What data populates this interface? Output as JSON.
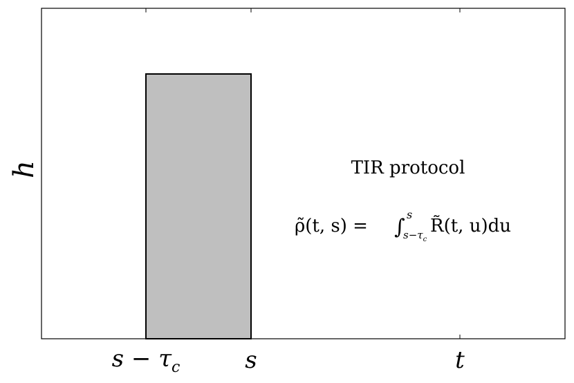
{
  "diagram": {
    "y_label": "h",
    "x_labels": [
      {
        "text": "s − τ",
        "sub": "c"
      },
      {
        "text": "s"
      },
      {
        "text": "t"
      }
    ],
    "annotation": "TIR protocol",
    "formula": {
      "lhs": "ρ̃(t, s) = ",
      "integral": "∫",
      "upper": "s",
      "lower": "s−τ",
      "lower_sub": "c",
      "rhs": " R̃(t, u)du"
    }
  }
}
